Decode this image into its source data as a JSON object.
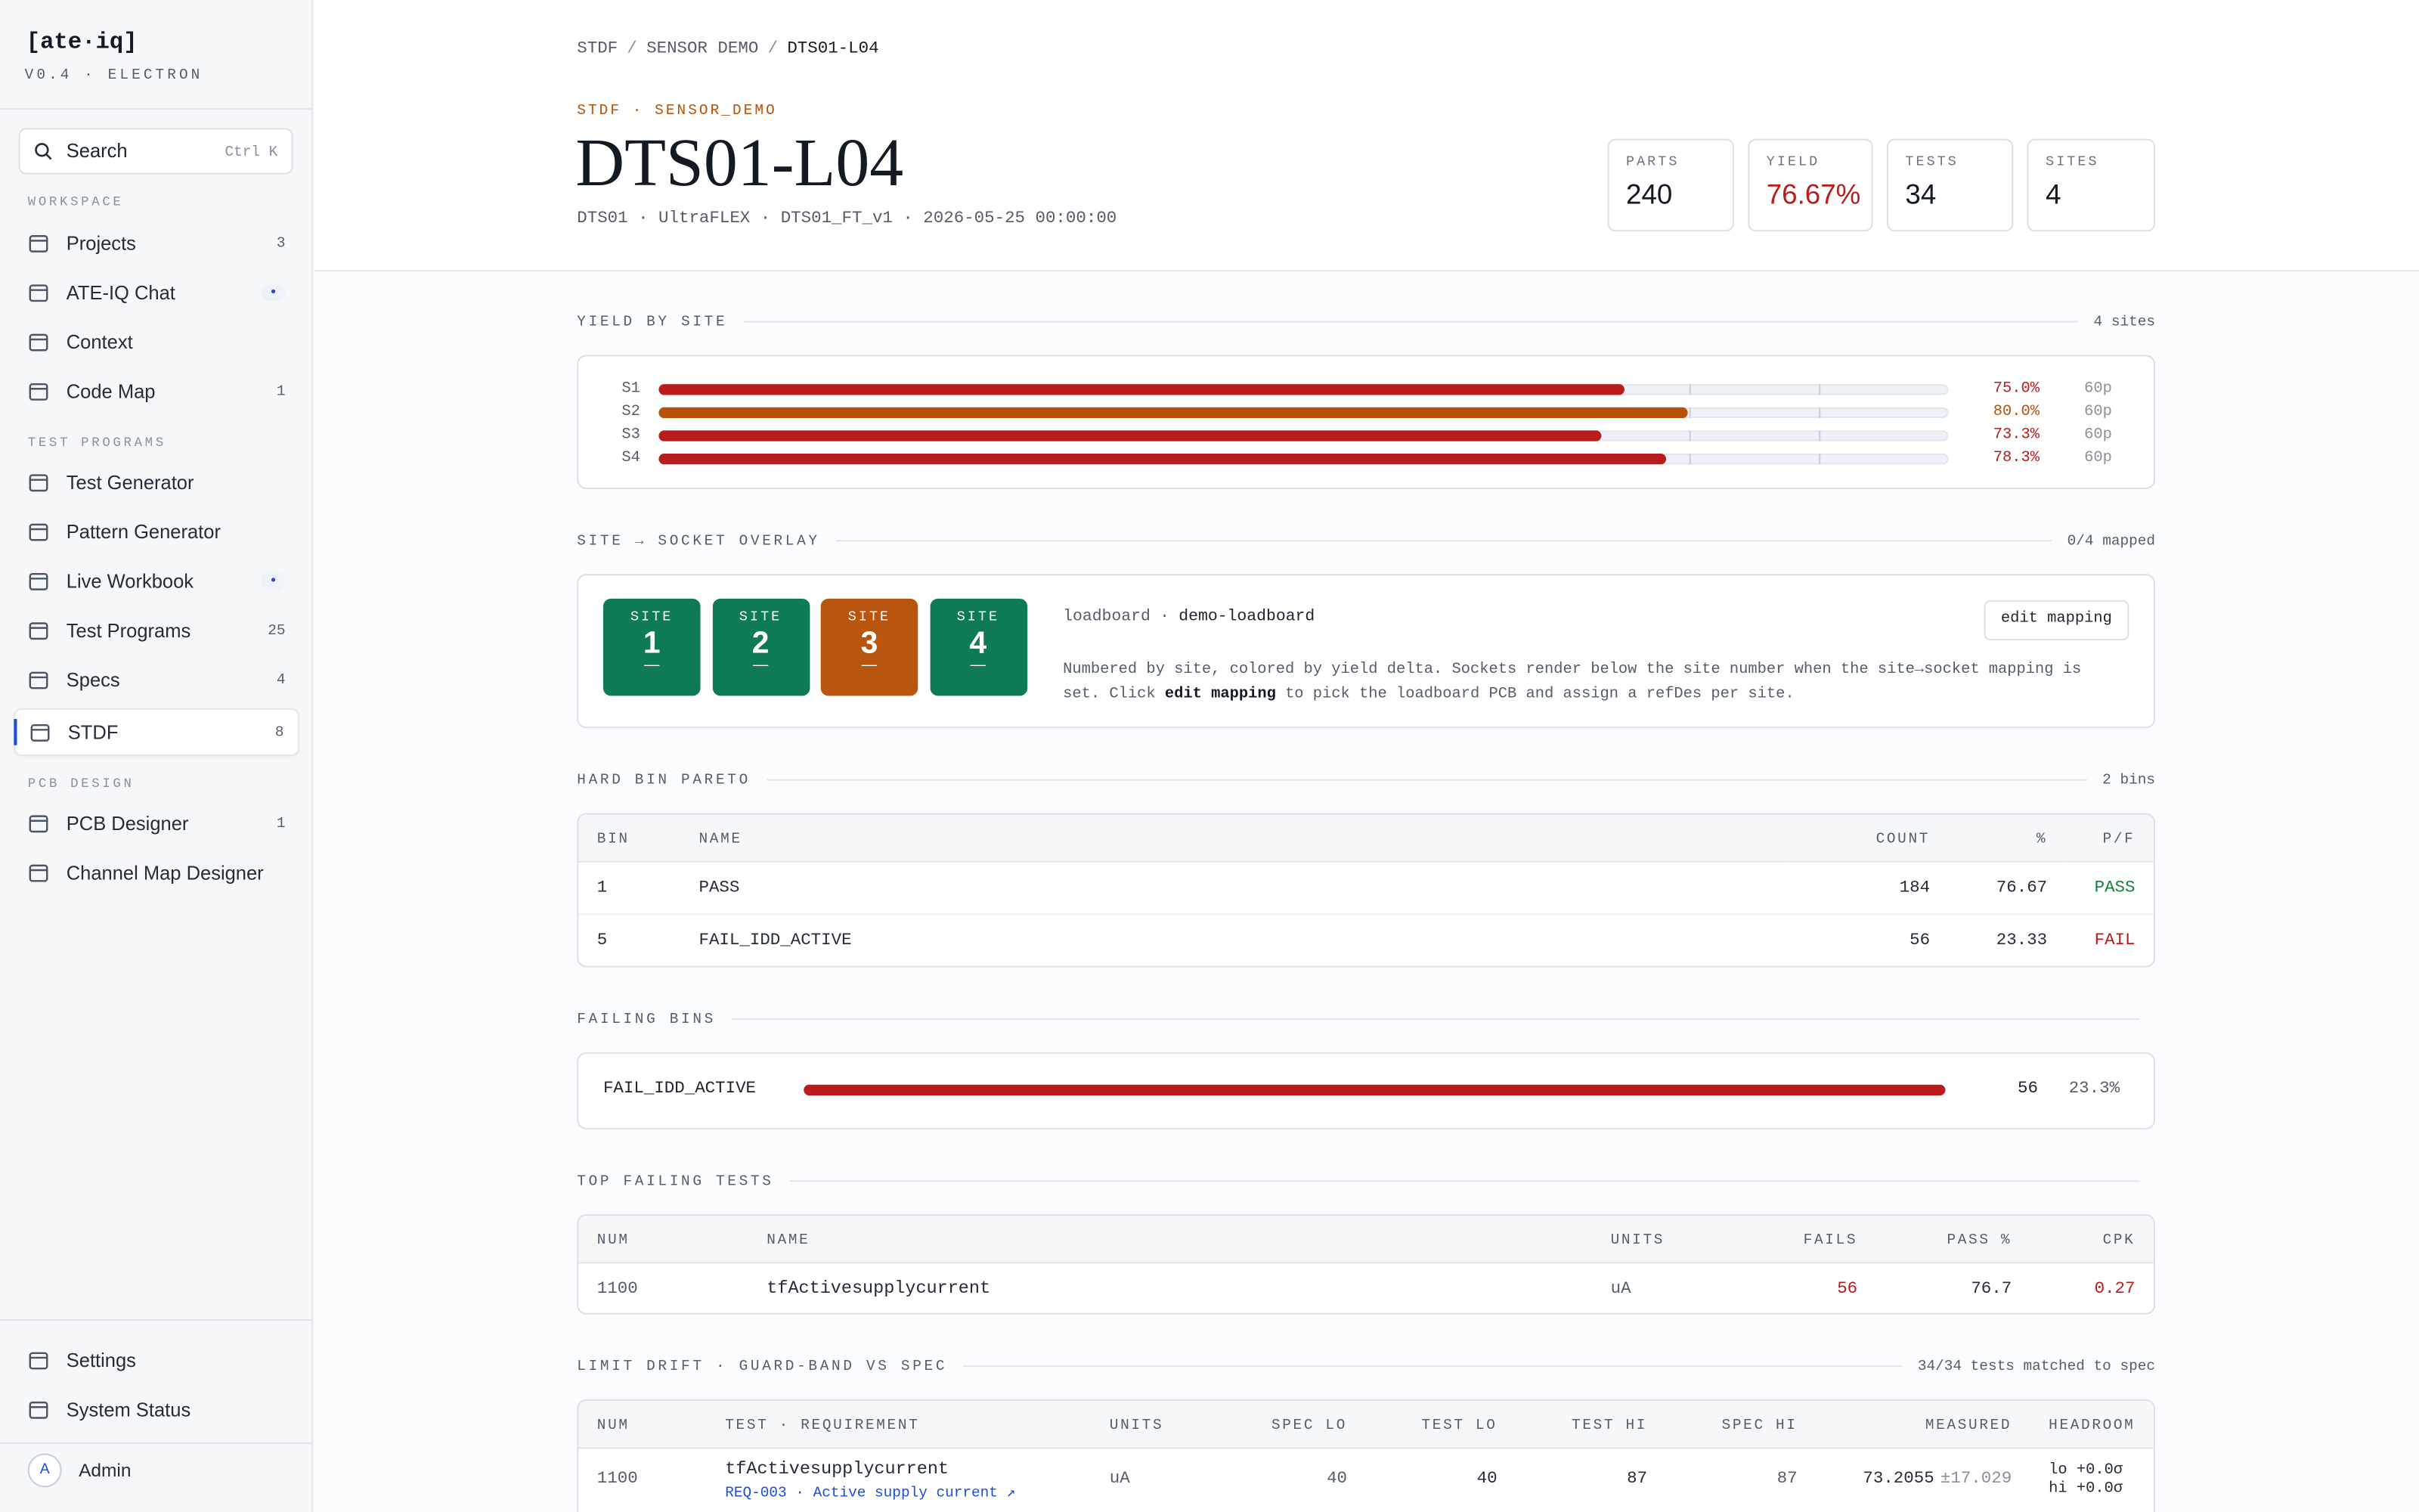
{
  "sidebar": {
    "brand": "[ate·iq]",
    "version": "V0.4 · ELECTRON",
    "search": "Search",
    "search_shortcut": "Ctrl K",
    "sections": [
      {
        "title": "WORKSPACE",
        "items": [
          {
            "label": "Projects",
            "badge": "3"
          },
          {
            "label": "ATE-IQ Chat",
            "badge": "•"
          },
          {
            "label": "Context"
          },
          {
            "label": "Code Map",
            "badge": "1"
          }
        ]
      },
      {
        "title": "TEST PROGRAMS",
        "items": [
          {
            "label": "Test Generator"
          },
          {
            "label": "Pattern Generator"
          },
          {
            "label": "Live Workbook",
            "badge": "•"
          },
          {
            "label": "Test Programs",
            "badge": "25"
          },
          {
            "label": "Specs",
            "badge": "4"
          },
          {
            "label": "STDF",
            "badge": "8",
            "active": true
          }
        ]
      },
      {
        "title": "PCB DESIGN",
        "items": [
          {
            "label": "PCB Designer",
            "badge": "1"
          },
          {
            "label": "Channel Map Designer"
          }
        ]
      }
    ],
    "footer": [
      {
        "label": "Settings"
      },
      {
        "label": "System Status"
      }
    ],
    "user": {
      "initial": "A",
      "name": "Admin"
    }
  },
  "breadcrumb": [
    "STDF",
    "SENSOR DEMO",
    "DTS01-L04"
  ],
  "header": {
    "eyebrow": "STDF · SENSOR_DEMO",
    "title": "DTS01-L04",
    "meta": "DTS01 · UltraFLEX · DTS01_FT_v1 · 2026-05-25 00:00:00",
    "stats": [
      {
        "label": "PARTS",
        "value": "240"
      },
      {
        "label": "YIELD",
        "value": "76.67%",
        "color": "#b91c1c"
      },
      {
        "label": "TESTS",
        "value": "34"
      },
      {
        "label": "SITES",
        "value": "4"
      }
    ]
  },
  "yield_by_site": {
    "title": "YIELD BY SITE",
    "aside": "4 sites",
    "xlim": [
      0,
      100
    ],
    "markers": [
      80,
      90
    ],
    "sites": [
      {
        "name": "S1",
        "yield": 75.0,
        "yield_label": "75.0%",
        "parts": "60p",
        "color": "#b91c1c"
      },
      {
        "name": "S2",
        "yield": 80.0,
        "yield_label": "80.0%",
        "parts": "60p",
        "color": "#b45309"
      },
      {
        "name": "S3",
        "yield": 73.3,
        "yield_label": "73.3%",
        "parts": "60p",
        "color": "#b91c1c"
      },
      {
        "name": "S4",
        "yield": 78.3,
        "yield_label": "78.3%",
        "parts": "60p",
        "color": "#b91c1c"
      }
    ]
  },
  "socket_overlay": {
    "title": "SITE → SOCKET OVERLAY",
    "aside": "0/4 mapped",
    "tiles": [
      {
        "label": "SITE",
        "number": "1",
        "socket": "—",
        "color": "#0f7a56"
      },
      {
        "label": "SITE",
        "number": "2",
        "socket": "—",
        "color": "#0f7a56"
      },
      {
        "label": "SITE",
        "number": "3",
        "socket": "—",
        "color": "#b8560f"
      },
      {
        "label": "SITE",
        "number": "4",
        "socket": "—",
        "color": "#0f7a56"
      }
    ],
    "loadboard_label": "loadboard",
    "loadboard": "demo-loadboard",
    "button": "edit mapping",
    "description": [
      "Numbered by site, colored by yield delta. Sockets render below the site number when the site→socket mapping is set. Click ",
      "edit mapping",
      " to pick the loadboard PCB and assign a refDes per site."
    ]
  },
  "hard_bin_pareto": {
    "title": "HARD BIN PARETO",
    "aside": "2 bins",
    "columns": [
      "BIN",
      "NAME",
      "COUNT",
      "%",
      "P/F"
    ],
    "rows": [
      [
        "1",
        "PASS",
        "184",
        "76.67",
        "PASS"
      ],
      [
        "5",
        "FAIL_IDD_ACTIVE",
        "56",
        "23.33",
        "FAIL"
      ]
    ]
  },
  "failing_bins": {
    "title": "FAILING BINS",
    "bins": [
      {
        "name": "FAIL_IDD_ACTIVE",
        "count": 56,
        "pct": "23.3%"
      }
    ]
  },
  "top_failing_tests": {
    "title": "TOP FAILING TESTS",
    "columns": [
      "NUM",
      "NAME",
      "UNITS",
      "FAILS",
      "PASS %",
      "CPK"
    ],
    "rows": [
      [
        "1100",
        "tfActivesupplycurrent",
        "uA",
        "56",
        "76.7",
        "0.27"
      ]
    ]
  },
  "limit_drift": {
    "title": "LIMIT DRIFT · GUARD-BAND VS SPEC",
    "aside": "34/34 tests matched to spec",
    "columns": [
      "NUM",
      "TEST · REQUIREMENT",
      "UNITS",
      "SPEC LO",
      "TEST LO",
      "TEST HI",
      "SPEC HI",
      "MEASURED",
      "HEADROOM"
    ],
    "rows": [
      {
        "num": "1100",
        "test": "tfActivesupplycurrent",
        "requirement": "REQ-003 · Active supply current ↗",
        "units": "uA",
        "spec_lo": "40",
        "test_lo": "40",
        "test_hi": "87",
        "spec_hi": "87",
        "measured": "73.2055",
        "sigma": "±17.029",
        "headroom": "lo +0.0σ hi +0.0σ"
      }
    ]
  }
}
